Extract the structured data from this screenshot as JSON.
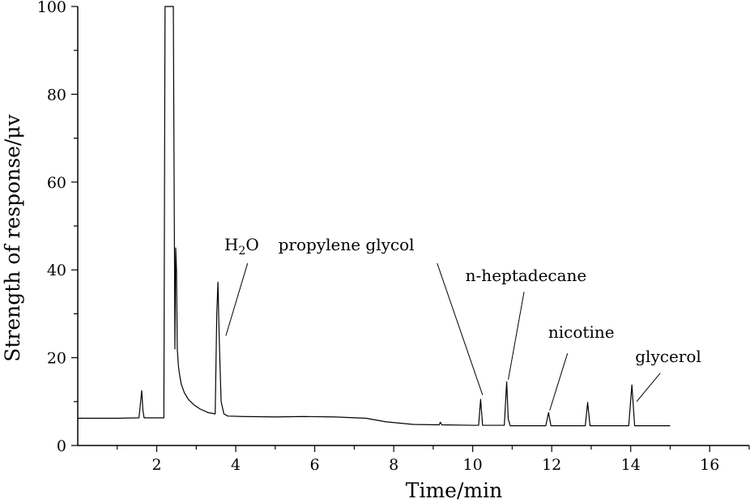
{
  "chart_data": {
    "type": "line",
    "title": "",
    "xlabel": "Time/min",
    "ylabel": "Strength of response/μv",
    "xlim": [
      0,
      17
    ],
    "ylim": [
      0,
      100
    ],
    "x_ticks": [
      2,
      4,
      6,
      8,
      10,
      12,
      14,
      16
    ],
    "y_ticks": [
      0,
      20,
      40,
      60,
      80,
      100
    ],
    "grid": false,
    "legend": "none",
    "series": [
      {
        "color": "#000000",
        "x": [
          0.0,
          1.0,
          1.55,
          1.62,
          1.65,
          1.68,
          1.75,
          2.18,
          2.21,
          2.23,
          2.26,
          2.3,
          2.35,
          2.4,
          2.42,
          2.44,
          2.46,
          2.48,
          2.5,
          2.52,
          2.55,
          2.58,
          2.62,
          2.7,
          2.8,
          2.95,
          3.1,
          3.3,
          3.48,
          3.52,
          3.55,
          3.58,
          3.63,
          3.7,
          3.8,
          4.2,
          5.0,
          5.7,
          6.5,
          7.3,
          7.8,
          8.5,
          9.15,
          9.18,
          9.22,
          10.0,
          10.15,
          10.2,
          10.25,
          10.8,
          10.86,
          10.9,
          10.95,
          11.85,
          11.92,
          11.98,
          12.85,
          12.91,
          12.97,
          13.95,
          14.03,
          14.1,
          15.0
        ],
        "y": [
          6.2,
          6.2,
          6.3,
          12.5,
          8.0,
          6.3,
          6.3,
          6.3,
          100,
          100,
          100,
          100,
          100,
          100,
          100,
          60,
          22,
          45,
          40,
          22,
          18,
          16,
          14,
          12,
          10.5,
          9.2,
          8.3,
          7.5,
          7.2,
          30,
          37.2,
          25,
          10,
          7.2,
          6.7,
          6.6,
          6.5,
          6.6,
          6.5,
          6.2,
          5.4,
          4.8,
          4.7,
          5.3,
          4.7,
          4.6,
          4.6,
          10.5,
          4.6,
          4.6,
          14.5,
          6.0,
          4.5,
          4.5,
          7.5,
          4.5,
          4.5,
          9.8,
          4.5,
          4.5,
          13.8,
          4.5,
          4.5
        ]
      }
    ],
    "annotations": [
      {
        "label": "H",
        "sub": "2",
        "label_end": "O",
        "x": 4.15,
        "y": 44.5,
        "arrow_to": [
          3.75,
          25.0
        ],
        "line_from": [
          4.3,
          41.5
        ]
      },
      {
        "label": "propylene glycol",
        "x": 6.8,
        "y": 44.5,
        "arrow_to": [
          10.25,
          11.5
        ],
        "line_from": [
          9.1,
          41.5
        ]
      },
      {
        "label": "n-heptadecane",
        "x": 11.35,
        "y": 37.5,
        "arrow_to": [
          10.9,
          15.0
        ],
        "line_from": [
          11.3,
          35.0
        ]
      },
      {
        "label": "nicotine",
        "x": 12.75,
        "y": 24.5,
        "arrow_to": [
          11.95,
          8.0
        ],
        "line_from": [
          12.4,
          21.0
        ]
      },
      {
        "label": "glycerol",
        "x": 14.95,
        "y": 19.0,
        "arrow_to": [
          14.15,
          10.0
        ],
        "line_from": [
          14.75,
          16.5
        ]
      }
    ]
  }
}
